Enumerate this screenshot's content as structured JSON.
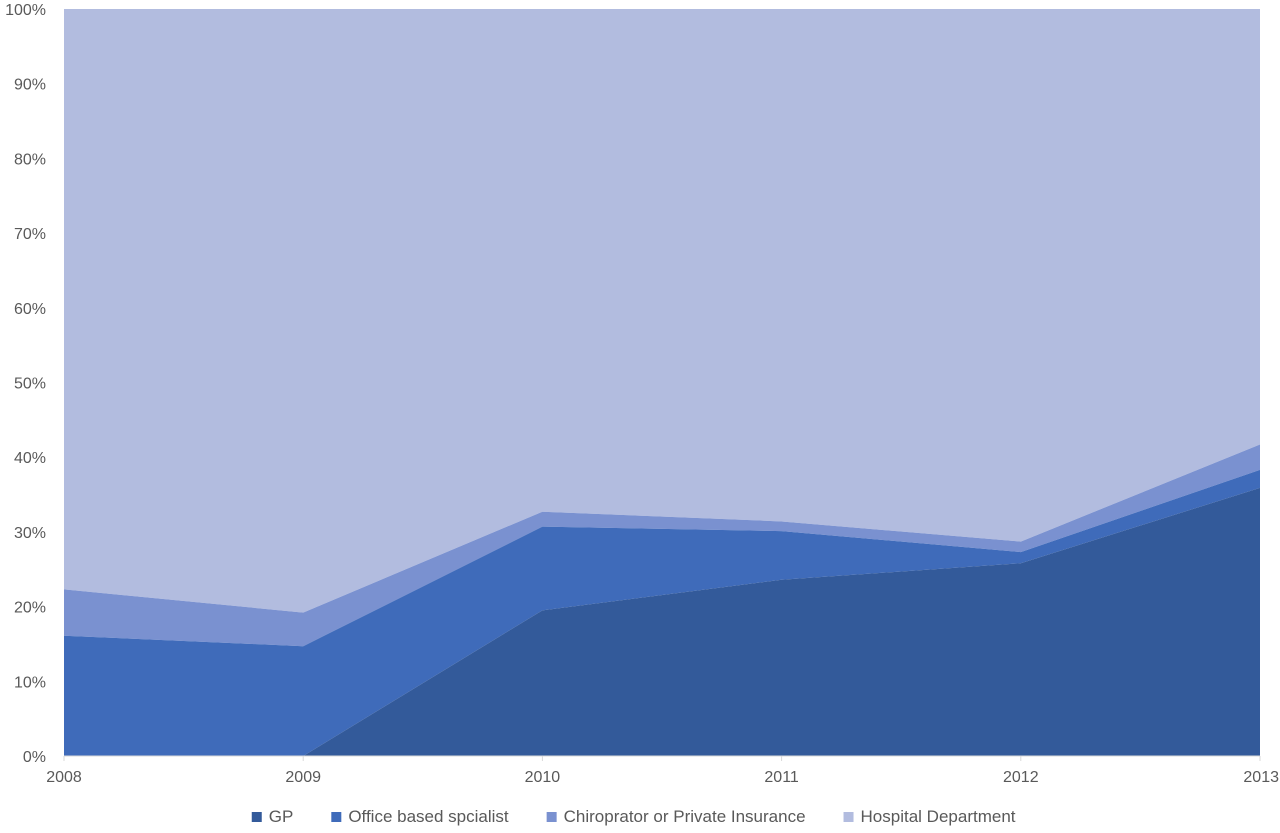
{
  "chart_data": {
    "type": "area",
    "stacked": true,
    "normalized": true,
    "title": "",
    "xlabel": "",
    "ylabel": "",
    "x": [
      "2008",
      "2009",
      "2010",
      "2011",
      "2012",
      "2013"
    ],
    "ylim": [
      0,
      100
    ],
    "y_ticks": [
      "0%",
      "10%",
      "20%",
      "30%",
      "40%",
      "50%",
      "60%",
      "70%",
      "80%",
      "90%",
      "100%"
    ],
    "grid": false,
    "legend_position": "bottom",
    "series": [
      {
        "name": "GP",
        "color": "#335A9A",
        "values": [
          0,
          0,
          19.5,
          23.6,
          25.8,
          35.9
        ]
      },
      {
        "name": "Office based spcialist",
        "color": "#3F6BBA",
        "values": [
          16.1,
          14.7,
          11.2,
          6.5,
          1.5,
          2.4
        ]
      },
      {
        "name": "Chiroprator or Private Insurance",
        "color": "#7A91D0",
        "values": [
          6.2,
          4.5,
          2.0,
          1.3,
          1.4,
          3.4
        ]
      },
      {
        "name": "Hospital Department",
        "color": "#B2BCDF",
        "values": [
          77.7,
          80.8,
          67.3,
          68.6,
          71.3,
          58.3
        ]
      }
    ]
  }
}
